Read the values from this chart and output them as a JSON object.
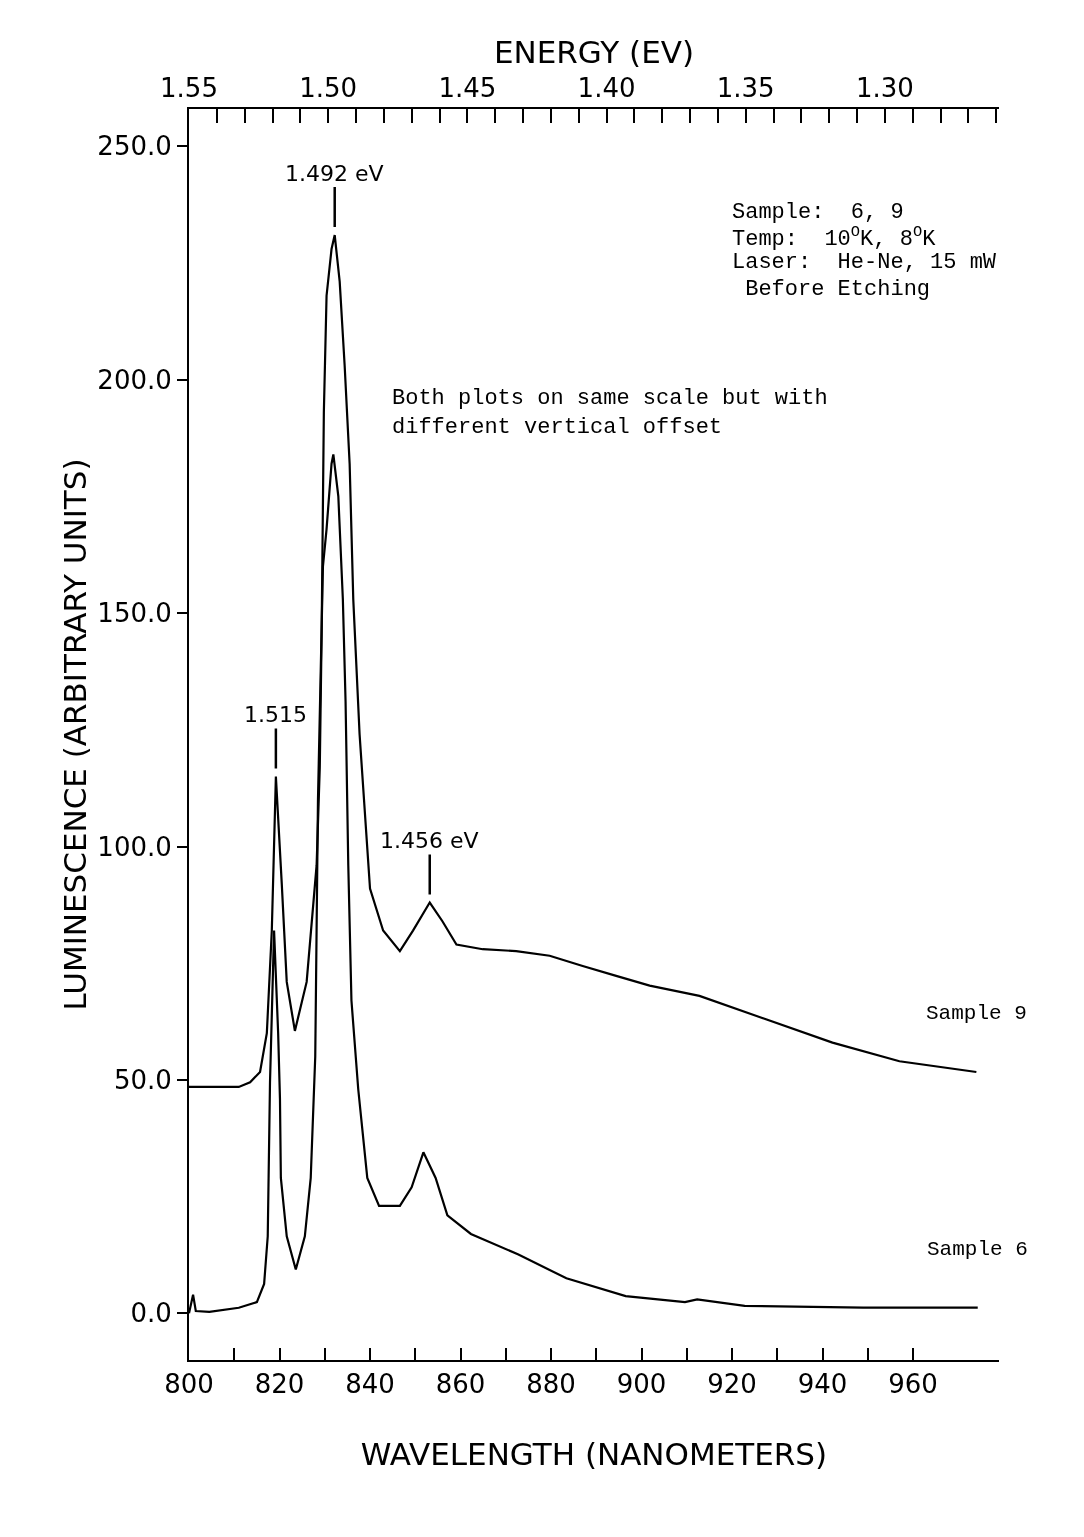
{
  "chart_data": {
    "type": "line",
    "xlabel": "WAVELENGTH (NANOMETERS)",
    "ylabel": "LUMINESCENCE (ARBITRARY UNITS)",
    "x2label": "ENERGY (EV)",
    "xlim": [
      800,
      979
    ],
    "xticks": [
      800,
      {
        "value": 810,
        "label": null
      },
      820,
      {
        "value": 830,
        "label": null
      },
      840,
      {
        "value": 850,
        "label": null
      },
      860,
      {
        "value": 870,
        "label": null
      },
      880,
      {
        "value": 890,
        "label": null
      },
      900,
      {
        "value": 910,
        "label": null
      },
      920,
      {
        "value": 930,
        "label": null
      },
      940,
      {
        "value": 950,
        "label": null
      },
      960
    ],
    "ylim": [
      -10,
      258
    ],
    "yticks": [
      {
        "value": 0,
        "label": "0.0"
      },
      {
        "value": 50,
        "label": "50.0"
      },
      {
        "value": 100,
        "label": "100.0"
      },
      {
        "value": 150,
        "label": "150.0"
      },
      {
        "value": 200,
        "label": "200.0"
      },
      {
        "value": 250,
        "label": "250.0"
      }
    ],
    "x2lim": [
      1.55,
      1.259
    ],
    "x2ticks": [
      {
        "value": 1.55,
        "label": "1.55"
      },
      {
        "value": 1.54,
        "label": null
      },
      {
        "value": 1.53,
        "label": null
      },
      {
        "value": 1.52,
        "label": null
      },
      {
        "value": 1.51,
        "label": null
      },
      {
        "value": 1.5,
        "label": "1.50"
      },
      {
        "value": 1.49,
        "label": null
      },
      {
        "value": 1.48,
        "label": null
      },
      {
        "value": 1.47,
        "label": null
      },
      {
        "value": 1.46,
        "label": null
      },
      {
        "value": 1.45,
        "label": "1.45"
      },
      {
        "value": 1.44,
        "label": null
      },
      {
        "value": 1.43,
        "label": null
      },
      {
        "value": 1.42,
        "label": null
      },
      {
        "value": 1.41,
        "label": null
      },
      {
        "value": 1.4,
        "label": "1.40"
      },
      {
        "value": 1.39,
        "label": null
      },
      {
        "value": 1.38,
        "label": null
      },
      {
        "value": 1.37,
        "label": null
      },
      {
        "value": 1.36,
        "label": null
      },
      {
        "value": 1.35,
        "label": "1.35"
      },
      {
        "value": 1.34,
        "label": null
      },
      {
        "value": 1.33,
        "label": null
      },
      {
        "value": 1.32,
        "label": null
      },
      {
        "value": 1.31,
        "label": null
      },
      {
        "value": 1.3,
        "label": "1.30"
      },
      {
        "value": 1.29,
        "label": null
      },
      {
        "value": 1.28,
        "label": null
      },
      {
        "value": 1.27,
        "label": null
      },
      {
        "value": 1.26,
        "label": null
      }
    ],
    "grid": false,
    "legend": false,
    "series": [
      {
        "name": "Sample 9",
        "color": "#000000",
        "x": [
          800,
          811,
          813.5,
          815.7,
          817.2,
          818.3,
          819.2,
          820.5,
          821.6,
          823.4,
          826,
          828.2,
          828.9,
          829.3,
          829.8,
          830.4,
          831.5,
          832.2,
          833.3,
          834.4,
          835.5,
          836.3,
          837.7,
          840,
          842.9,
          846.6,
          849.5,
          853.2,
          856,
          859.1,
          864.9,
          872.3,
          879.7,
          887,
          894.4,
          901.8,
          912.8,
          927.5,
          942.2,
          957,
          974
        ],
        "values": [
          48.5,
          48.5,
          49.5,
          51.7,
          60,
          82,
          115,
          92,
          71,
          60.5,
          71,
          96,
          117,
          145,
          193,
          218,
          228,
          231,
          221,
          203,
          182,
          153,
          124,
          91,
          82,
          77.6,
          82,
          88,
          84,
          79,
          78,
          77.6,
          76.6,
          74.4,
          72.3,
          70.2,
          68,
          63,
          58,
          54,
          51.7
        ]
      },
      {
        "name": "Sample 6",
        "color": "#000000",
        "x": [
          800,
          800.9,
          801.5,
          804.5,
          811,
          815,
          816.6,
          817.4,
          817.9,
          818.8,
          819.7,
          820.1,
          820.3,
          821.6,
          823.6,
          825.6,
          826.9,
          827.9,
          828.5,
          829.6,
          830.4,
          831.5,
          831.9,
          833,
          834,
          834.6,
          835.2,
          835.9,
          837.4,
          839.4,
          842,
          846.6,
          849.2,
          851.8,
          854.5,
          857.1,
          862.3,
          872.8,
          883.4,
          896.5,
          909.6,
          912.3,
          922.8,
          949,
          974.3
        ],
        "values": [
          0,
          4,
          0.5,
          0.3,
          1.2,
          2.4,
          6.3,
          16.5,
          49.5,
          82,
          60,
          46,
          29,
          16.5,
          9.4,
          16.5,
          29,
          55,
          110,
          160,
          168,
          182,
          184,
          175,
          153,
          131,
          96,
          67,
          48,
          29,
          23,
          23,
          27,
          34.5,
          29,
          21,
          17,
          12.6,
          7.5,
          3.7,
          2.4,
          3,
          1.6,
          1.2,
          1.2
        ]
      }
    ],
    "annotations": [
      {
        "text": "1.492 eV",
        "x": 832.2,
        "y": 231
      },
      {
        "text": "1.515",
        "x": 819.2,
        "y": 115
      },
      {
        "text": "1.456 eV",
        "x": 853.2,
        "y": 88
      },
      "Sample:  6, 9",
      "Temp:  10$^{O}$K, 8$^{O}$K",
      "Laser:  He-Ne, 15 mW",
      " Before Etching",
      "Both plots on same scale but with\ndifferent vertical offset"
    ]
  }
}
